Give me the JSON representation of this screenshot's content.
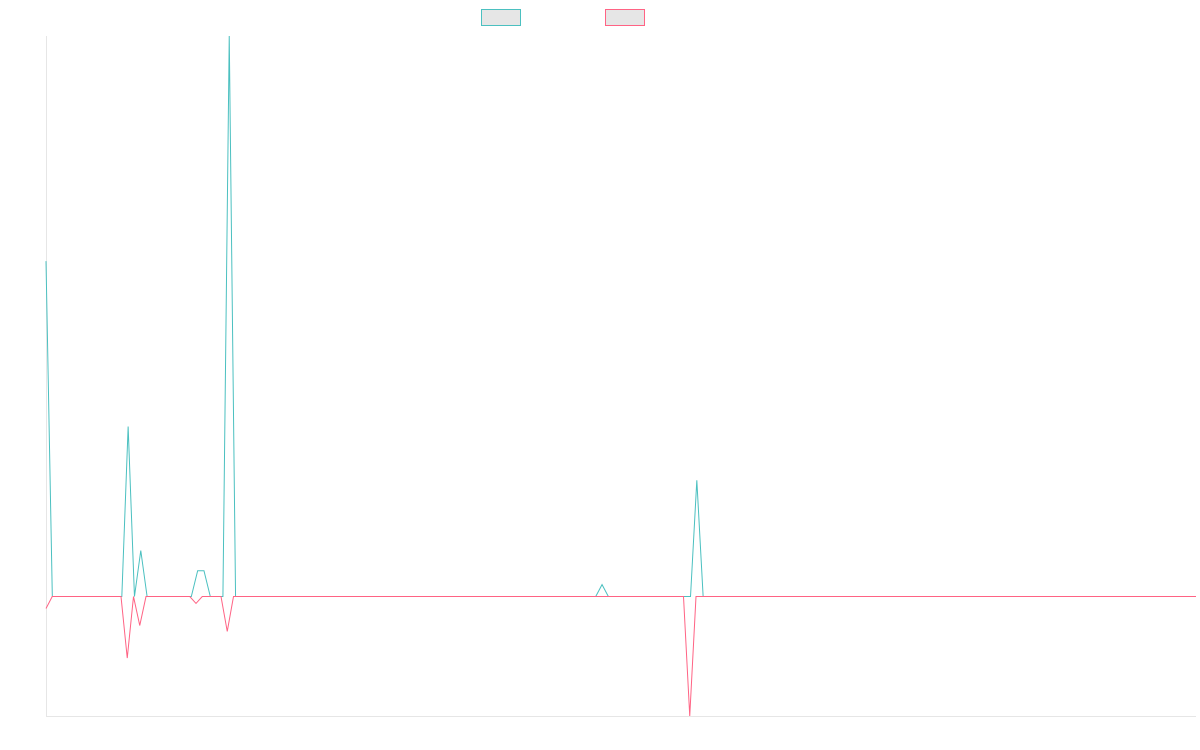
{
  "chart_data": {
    "type": "line",
    "title": "",
    "xlabel": "",
    "ylabel": "",
    "ylim": [
      -26,
      122
    ],
    "grid": false,
    "legend_position": "top-center",
    "series": [
      {
        "label": "",
        "color": "#4bc0c0",
        "legend_fill": "#e6e6e6",
        "values": [
          73,
          0,
          0,
          0,
          0,
          0,
          0,
          0,
          0,
          0,
          0,
          0,
          0,
          37,
          0,
          10,
          0,
          0,
          0,
          0,
          0,
          0,
          0,
          0,
          5.6,
          5.6,
          0,
          0,
          0,
          122,
          0,
          0,
          0,
          0,
          0,
          0,
          0,
          0,
          0,
          0,
          0,
          0,
          0,
          0,
          0,
          0,
          0,
          0,
          0,
          0,
          0,
          0,
          0,
          0,
          0,
          0,
          0,
          0,
          0,
          0,
          0,
          0,
          0,
          0,
          0,
          0,
          0,
          0,
          0,
          0,
          0,
          0,
          0,
          0,
          0,
          0,
          0,
          0,
          0,
          0,
          0,
          0,
          0,
          0,
          0,
          0,
          0,
          0,
          2.6,
          0,
          0,
          0,
          0,
          0,
          0,
          0,
          0,
          0,
          0,
          0,
          0,
          0,
          0,
          25.3,
          0,
          0,
          0,
          0,
          0,
          0,
          0,
          0,
          0,
          0,
          0,
          0,
          0,
          0,
          0,
          0,
          0,
          0,
          0,
          0,
          0,
          0,
          0,
          0,
          0,
          0,
          0,
          0,
          0,
          0,
          0,
          0,
          0,
          0,
          0,
          0,
          0,
          0,
          0,
          0,
          0,
          0,
          0,
          0,
          0,
          0,
          0,
          0,
          0,
          0,
          0,
          0,
          0,
          0,
          0,
          0,
          0,
          0,
          0,
          0,
          0,
          0,
          0,
          0,
          0,
          0,
          0,
          0,
          0,
          0,
          0,
          0,
          0,
          0,
          0,
          0,
          0,
          0,
          0
        ]
      },
      {
        "label": "",
        "color": "#ff6384",
        "legend_fill": "#e6e6e6",
        "values": [
          -2.6,
          0,
          0,
          0,
          0,
          0,
          0,
          0,
          0,
          0,
          0,
          0,
          0,
          -13.4,
          0,
          -6.3,
          0,
          0,
          0,
          0,
          0,
          0,
          0,
          0,
          -1.5,
          0,
          0,
          0,
          0,
          -7.6,
          0,
          0,
          0,
          0,
          0,
          0,
          0,
          0,
          0,
          0,
          0,
          0,
          0,
          0,
          0,
          0,
          0,
          0,
          0,
          0,
          0,
          0,
          0,
          0,
          0,
          0,
          0,
          0,
          0,
          0,
          0,
          0,
          0,
          0,
          0,
          0,
          0,
          0,
          0,
          0,
          0,
          0,
          0,
          0,
          0,
          0,
          0,
          0,
          0,
          0,
          0,
          0,
          0,
          0,
          0,
          0,
          0,
          0,
          0,
          0,
          0,
          0,
          0,
          0,
          0,
          0,
          0,
          0,
          0,
          0,
          0,
          0,
          0,
          -26,
          0,
          0,
          0,
          0,
          0,
          0,
          0,
          0,
          0,
          0,
          0,
          0,
          0,
          0,
          0,
          0,
          0,
          0,
          0,
          0,
          0,
          0,
          0,
          0,
          0,
          0,
          0,
          0,
          0,
          0,
          0,
          0,
          0,
          0,
          0,
          0,
          0,
          0,
          0,
          0,
          0,
          0,
          0,
          0,
          0,
          0,
          0,
          0,
          0,
          0,
          0,
          0,
          0,
          0,
          0,
          0,
          0,
          0,
          0,
          0,
          0,
          0,
          0,
          0,
          0,
          0,
          0,
          0,
          0,
          0,
          0,
          0,
          0,
          0,
          0,
          0,
          0,
          0,
          0,
          0,
          0
        ]
      }
    ]
  }
}
